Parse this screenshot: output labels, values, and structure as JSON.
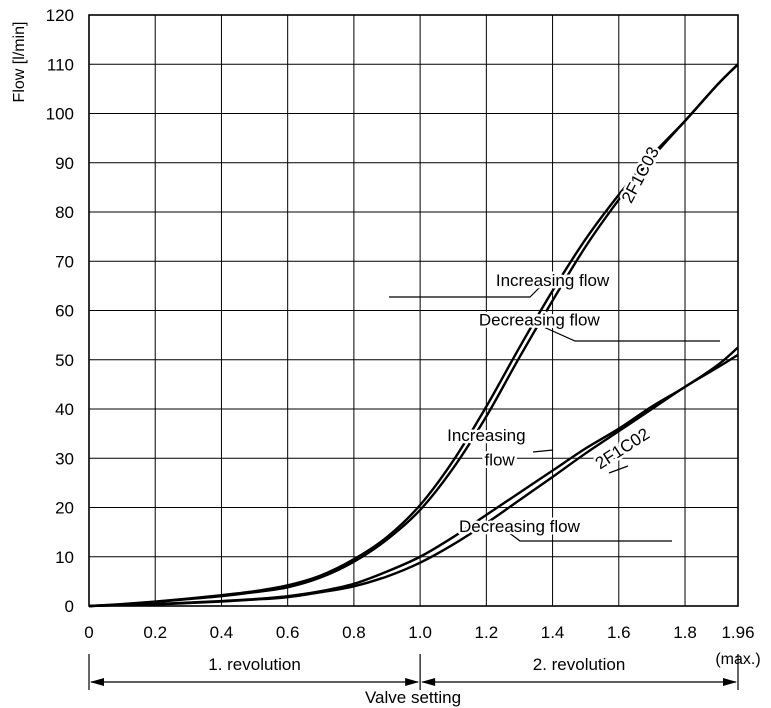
{
  "chart_data": {
    "type": "line",
    "ylabel": "Flow [l/min]",
    "xlabel": "Valve setting",
    "x_ticks": [
      0,
      0.2,
      0.4,
      0.6,
      0.8,
      1.0,
      1.2,
      1.4,
      1.6,
      1.8,
      1.96
    ],
    "x_tick_labels": [
      "0",
      "0.2",
      "0.4",
      "0.6",
      "0.8",
      "1.0",
      "1.2",
      "1.4",
      "1.6",
      "1.8",
      "1.96"
    ],
    "x_max_label": "(max.)",
    "y_ticks": [
      0,
      10,
      20,
      30,
      40,
      50,
      60,
      70,
      80,
      90,
      100,
      110,
      120
    ],
    "xlim": [
      0,
      1.96
    ],
    "ylim": [
      0,
      120
    ],
    "grid": true,
    "revolutions": [
      {
        "label": "1. revolution",
        "from": 0,
        "to": 1.0
      },
      {
        "label": "2. revolution",
        "from": 1.0,
        "to": 1.96
      }
    ],
    "series": [
      {
        "name": "2F1C03 Increasing flow",
        "x": [
          0,
          0.1,
          0.2,
          0.3,
          0.4,
          0.5,
          0.6,
          0.7,
          0.8,
          0.9,
          1.0,
          1.1,
          1.2,
          1.3,
          1.4,
          1.5,
          1.6,
          1.7,
          1.8,
          1.9,
          1.96
        ],
        "y": [
          0,
          0.4,
          0.9,
          1.5,
          2.2,
          3.0,
          4.2,
          6.2,
          9.5,
          14.0,
          20.5,
          29.5,
          40.5,
          52.5,
          64.0,
          74.5,
          83.5,
          91.5,
          98.5,
          106.0,
          110.0
        ]
      },
      {
        "name": "2F1C03 Decreasing flow",
        "x": [
          0,
          0.1,
          0.2,
          0.3,
          0.4,
          0.5,
          0.6,
          0.7,
          0.8,
          0.9,
          1.0,
          1.1,
          1.2,
          1.3,
          1.4,
          1.5,
          1.6,
          1.7,
          1.8,
          1.9,
          1.96
        ],
        "y": [
          0,
          0.3,
          0.8,
          1.4,
          2.0,
          2.8,
          3.8,
          5.8,
          9.0,
          13.5,
          19.5,
          28.0,
          38.5,
          50.5,
          62.0,
          73.0,
          82.5,
          91.0,
          98.5,
          106.0,
          110.0
        ]
      },
      {
        "name": "2F1C02 Increasing flow",
        "x": [
          0,
          0.1,
          0.2,
          0.3,
          0.4,
          0.5,
          0.6,
          0.7,
          0.8,
          0.9,
          1.0,
          1.1,
          1.2,
          1.3,
          1.4,
          1.5,
          1.6,
          1.7,
          1.8,
          1.9,
          1.96
        ],
        "y": [
          0,
          0.2,
          0.4,
          0.7,
          1.0,
          1.4,
          2.0,
          3.0,
          4.5,
          7.0,
          10.0,
          14.0,
          18.5,
          23.0,
          27.5,
          32.0,
          36.0,
          40.5,
          44.5,
          49.0,
          52.5
        ]
      },
      {
        "name": "2F1C02 Decreasing flow",
        "x": [
          0,
          0.1,
          0.2,
          0.3,
          0.4,
          0.5,
          0.6,
          0.7,
          0.8,
          0.9,
          1.0,
          1.1,
          1.2,
          1.3,
          1.4,
          1.5,
          1.6,
          1.7,
          1.8,
          1.9,
          1.96
        ],
        "y": [
          0,
          0.2,
          0.3,
          0.6,
          0.9,
          1.3,
          1.8,
          2.8,
          4.0,
          6.0,
          8.8,
          12.5,
          16.8,
          21.5,
          26.2,
          31.0,
          35.5,
          40.0,
          44.5,
          48.5,
          51.0
        ]
      }
    ],
    "annotations": [
      {
        "text": "2F1C03",
        "x": 1.68,
        "y": 87,
        "rotate": -62
      },
      {
        "text": "Increasing flow",
        "x": 1.4,
        "y": 65
      },
      {
        "text": "Decreasing flow",
        "x": 1.36,
        "y": 57
      },
      {
        "text": "2F1C02",
        "x": 1.62,
        "y": 31,
        "rotate": -33
      },
      {
        "text": "Increasing",
        "x": 1.2,
        "y": 33.5
      },
      {
        "text": "flow",
        "x": 1.24,
        "y": 28.5
      },
      {
        "text": "Decreasing flow",
        "x": 1.3,
        "y": 15
      }
    ]
  }
}
